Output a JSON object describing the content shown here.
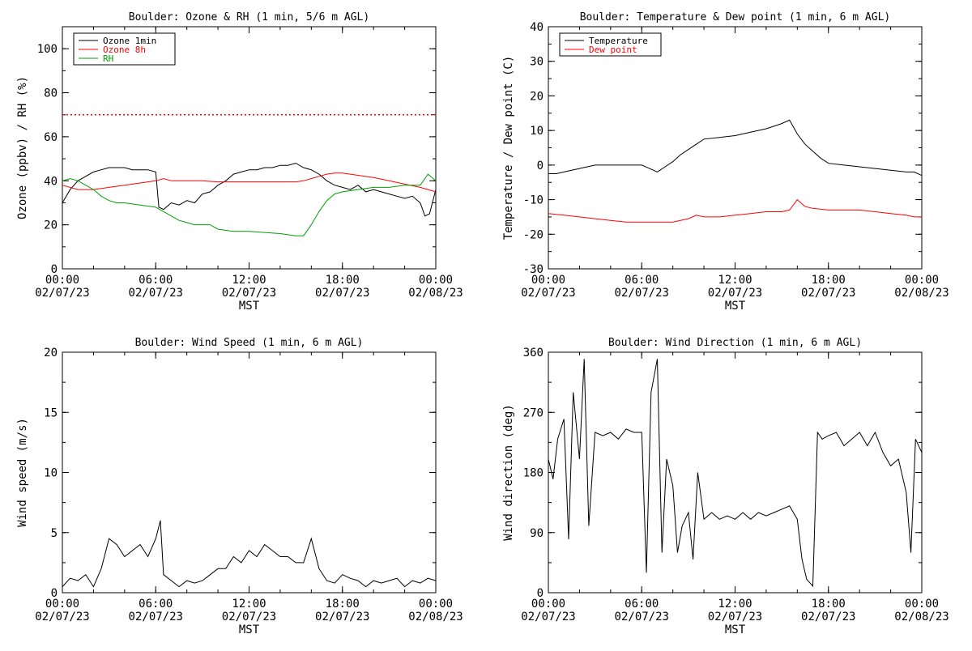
{
  "x_axis": {
    "time_ticks": [
      "00:00",
      "06:00",
      "12:00",
      "18:00",
      "00:00"
    ],
    "date_ticks": [
      "02/07/23",
      "02/07/23",
      "02/07/23",
      "02/07/23",
      "02/08/23"
    ],
    "xlabel": "MST",
    "range_hours": [
      0,
      24
    ]
  },
  "chart_data": [
    {
      "id": "ozone_rh",
      "type": "line",
      "title": "Boulder: Ozone & RH (1 min, 5/6 m AGL)",
      "ylabel": "Ozone (ppbv) / RH (%)",
      "xlabel": "MST",
      "ylim": [
        0,
        110
      ],
      "yticks": [
        0,
        20,
        40,
        60,
        80,
        100
      ],
      "legend": "top-left",
      "series": [
        {
          "name": "Ozone 1min",
          "color": "#000000",
          "x": [
            0,
            0.5,
            1,
            1.5,
            2,
            2.5,
            3,
            3.5,
            4,
            4.5,
            5,
            5.5,
            6,
            6.2,
            6.5,
            7,
            7.5,
            8,
            8.5,
            9,
            9.5,
            10,
            10.5,
            11,
            11.5,
            12,
            12.5,
            13,
            13.5,
            14,
            14.5,
            15,
            15.5,
            16,
            16.5,
            17,
            17.5,
            18,
            18.5,
            19,
            19.5,
            20,
            20.5,
            21,
            21.5,
            22,
            22.5,
            23,
            23.3,
            23.6,
            24
          ],
          "y": [
            30,
            36,
            40,
            42,
            44,
            45,
            46,
            46,
            46,
            45,
            45,
            45,
            44,
            28,
            27,
            30,
            29,
            31,
            30,
            34,
            35,
            38,
            40,
            43,
            44,
            45,
            45,
            46,
            46,
            47,
            47,
            48,
            46,
            45,
            43,
            40,
            38,
            37,
            36,
            38,
            35,
            36,
            35,
            34,
            33,
            32,
            33,
            30,
            24,
            25,
            36
          ]
        },
        {
          "name": "Ozone 8h",
          "color": "#ff0000",
          "x": [
            0,
            1,
            2,
            3,
            4,
            5,
            6,
            6.5,
            7,
            8,
            9,
            10,
            11,
            12,
            13,
            14,
            15,
            15.5,
            16,
            16.5,
            17,
            17.5,
            18,
            19,
            20,
            21,
            22,
            23,
            24
          ],
          "y": [
            38,
            36,
            36,
            37,
            38,
            39,
            40,
            41,
            40,
            40,
            40,
            39.5,
            39.5,
            39.5,
            39.5,
            39.5,
            39.5,
            40,
            41,
            42,
            43,
            43.5,
            43.5,
            42.5,
            41.5,
            40,
            38.5,
            37,
            35
          ]
        },
        {
          "name": "RH",
          "color": "#00a000",
          "x": [
            0,
            0.5,
            1,
            1.5,
            2,
            2.5,
            3,
            3.5,
            4,
            5,
            6,
            6.5,
            7,
            7.5,
            8,
            8.5,
            9,
            9.5,
            10,
            11,
            12,
            13,
            14,
            15,
            15.5,
            16,
            16.5,
            17,
            17.5,
            18,
            19,
            20,
            21,
            22,
            23,
            23.5,
            24
          ],
          "y": [
            40,
            41,
            40,
            38,
            36,
            33,
            31,
            30,
            30,
            29,
            28,
            26,
            24,
            22,
            21,
            20,
            20,
            20,
            18,
            17,
            17,
            16.5,
            16,
            15,
            15,
            20,
            26,
            31,
            34,
            35,
            36,
            37,
            37,
            38,
            38,
            43,
            40
          ]
        },
        {
          "name": "",
          "color": "#ff0000",
          "style": "dotted",
          "x": [
            0,
            24
          ],
          "y": [
            70,
            70
          ]
        }
      ]
    },
    {
      "id": "temp_dew",
      "type": "line",
      "title": "Boulder: Temperature & Dew point (1 min, 6 m AGL)",
      "ylabel": "Temperature / Dew point (C)",
      "xlabel": "MST",
      "ylim": [
        -30,
        40
      ],
      "yticks": [
        -30,
        -20,
        -10,
        0,
        10,
        20,
        30,
        40
      ],
      "legend": "top-left",
      "series": [
        {
          "name": "Temperature",
          "color": "#000000",
          "x": [
            0,
            0.5,
            1,
            1.5,
            2,
            2.5,
            3,
            3.5,
            4,
            5,
            6,
            6.5,
            7,
            7.5,
            8,
            8.5,
            9,
            9.5,
            10,
            11,
            12,
            13,
            14,
            15,
            15.5,
            16,
            16.5,
            17,
            17.5,
            18,
            19,
            20,
            21,
            22,
            23,
            23.5,
            24
          ],
          "y": [
            -2.5,
            -2.5,
            -2,
            -1.5,
            -1,
            -0.5,
            0,
            0,
            0,
            0,
            0,
            -1,
            -2,
            -0.5,
            1,
            3,
            4.5,
            6,
            7.5,
            8,
            8.5,
            9.5,
            10.5,
            12,
            13,
            9,
            6,
            4,
            2,
            0.5,
            0,
            -0.5,
            -1,
            -1.5,
            -2,
            -2,
            -3
          ]
        },
        {
          "name": "Dew point",
          "color": "#ff0000",
          "x": [
            0,
            1,
            2,
            3,
            4,
            5,
            6,
            7,
            8,
            9,
            9.5,
            10,
            11,
            12,
            13,
            14,
            15,
            15.5,
            16,
            16.5,
            17,
            18,
            19,
            20,
            21,
            22,
            23,
            23.5,
            24
          ],
          "y": [
            -14,
            -14.5,
            -15,
            -15.5,
            -16,
            -16.5,
            -16.5,
            -16.5,
            -16.5,
            -15.5,
            -14.5,
            -15,
            -15,
            -14.5,
            -14,
            -13.5,
            -13.5,
            -13,
            -10,
            -12,
            -12.5,
            -13,
            -13,
            -13,
            -13.5,
            -14,
            -14.5,
            -15,
            -15
          ]
        }
      ]
    },
    {
      "id": "wind_speed",
      "type": "line",
      "title": "Boulder: Wind Speed (1 min, 6 m AGL)",
      "ylabel": "Wind speed (m/s)",
      "xlabel": "MST",
      "ylim": [
        0,
        20
      ],
      "yticks": [
        0,
        5,
        10,
        15,
        20
      ],
      "series": [
        {
          "name": "",
          "color": "#000000",
          "x": [
            0,
            0.5,
            1,
            1.5,
            2,
            2.5,
            3,
            3.5,
            4,
            4.5,
            5,
            5.5,
            6,
            6.3,
            6.5,
            7,
            7.5,
            8,
            8.5,
            9,
            9.5,
            10,
            10.5,
            11,
            11.5,
            12,
            12.5,
            13,
            13.5,
            14,
            14.5,
            15,
            15.5,
            16,
            16.5,
            17,
            17.5,
            18,
            18.5,
            19,
            19.5,
            20,
            20.5,
            21,
            21.5,
            22,
            22.5,
            23,
            23.5,
            24
          ],
          "y": [
            0.5,
            1.2,
            1,
            1.5,
            0.5,
            2,
            4.5,
            4,
            3,
            3.5,
            4,
            3,
            4.5,
            6,
            1.5,
            1,
            0.5,
            1,
            0.8,
            1,
            1.5,
            2,
            2,
            3,
            2.5,
            3.5,
            3,
            4,
            3.5,
            3,
            3,
            2.5,
            2.5,
            4.5,
            2,
            1,
            0.8,
            1.5,
            1.2,
            1,
            0.5,
            1,
            0.8,
            1,
            1.2,
            0.5,
            1,
            0.8,
            1.2,
            1
          ]
        }
      ]
    },
    {
      "id": "wind_dir",
      "type": "line",
      "title": "Boulder: Wind Direction (1 min, 6 m AGL)",
      "ylabel": "Wind direction (deg)",
      "xlabel": "MST",
      "ylim": [
        0,
        360
      ],
      "yticks": [
        0,
        90,
        180,
        270,
        360
      ],
      "series": [
        {
          "name": "",
          "color": "#000000",
          "x": [
            0,
            0.3,
            0.6,
            1,
            1.3,
            1.6,
            2,
            2.3,
            2.6,
            3,
            3.5,
            4,
            4.5,
            5,
            5.5,
            6,
            6.3,
            6.6,
            7,
            7.3,
            7.6,
            8,
            8.3,
            8.6,
            9,
            9.3,
            9.6,
            10,
            10.5,
            11,
            11.5,
            12,
            12.5,
            13,
            13.5,
            14,
            14.5,
            15,
            15.5,
            16,
            16.3,
            16.6,
            17,
            17.3,
            17.6,
            18,
            18.5,
            19,
            19.5,
            20,
            20.5,
            21,
            21.5,
            22,
            22.5,
            23,
            23.3,
            23.6,
            24
          ],
          "y": [
            200,
            170,
            230,
            260,
            80,
            300,
            200,
            350,
            100,
            240,
            235,
            240,
            230,
            245,
            240,
            240,
            30,
            300,
            350,
            60,
            200,
            160,
            60,
            100,
            120,
            50,
            180,
            110,
            120,
            110,
            115,
            110,
            120,
            110,
            120,
            115,
            120,
            125,
            130,
            110,
            50,
            20,
            10,
            240,
            230,
            235,
            240,
            220,
            230,
            240,
            220,
            240,
            210,
            190,
            200,
            150,
            60,
            230,
            210
          ]
        }
      ]
    }
  ]
}
